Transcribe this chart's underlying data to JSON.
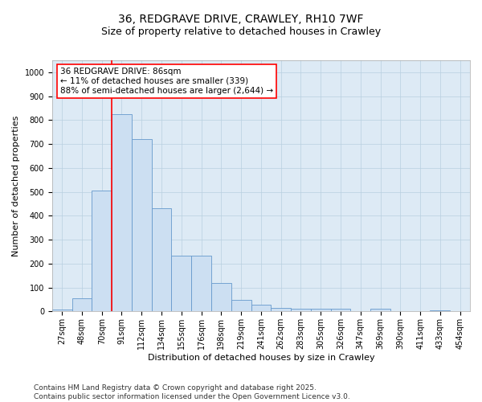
{
  "title_line1": "36, REDGRAVE DRIVE, CRAWLEY, RH10 7WF",
  "title_line2": "Size of property relative to detached houses in Crawley",
  "xlabel": "Distribution of detached houses by size in Crawley",
  "ylabel": "Number of detached properties",
  "bin_labels": [
    "27sqm",
    "48sqm",
    "70sqm",
    "91sqm",
    "112sqm",
    "134sqm",
    "155sqm",
    "176sqm",
    "198sqm",
    "219sqm",
    "241sqm",
    "262sqm",
    "283sqm",
    "305sqm",
    "326sqm",
    "347sqm",
    "369sqm",
    "390sqm",
    "411sqm",
    "433sqm",
    "454sqm"
  ],
  "bar_heights": [
    8,
    55,
    505,
    825,
    720,
    430,
    235,
    235,
    120,
    50,
    30,
    15,
    12,
    10,
    10,
    0,
    10,
    0,
    0,
    5,
    0
  ],
  "bar_color": "#ccdff2",
  "bar_edge_color": "#6699cc",
  "vline_color": "red",
  "vline_pos": 2.5,
  "annotation_text": "36 REDGRAVE DRIVE: 86sqm\n← 11% of detached houses are smaller (339)\n88% of semi-detached houses are larger (2,644) →",
  "annotation_box_color": "white",
  "annotation_box_edge": "red",
  "ylim": [
    0,
    1050
  ],
  "yticks": [
    0,
    100,
    200,
    300,
    400,
    500,
    600,
    700,
    800,
    900,
    1000
  ],
  "grid_color": "#b8cfe0",
  "background_color": "#ddeaf5",
  "footer_text": "Contains HM Land Registry data © Crown copyright and database right 2025.\nContains public sector information licensed under the Open Government Licence v3.0.",
  "title_fontsize": 10,
  "subtitle_fontsize": 9,
  "axis_label_fontsize": 8,
  "tick_fontsize": 7,
  "annotation_fontsize": 7.5,
  "footer_fontsize": 6.5
}
